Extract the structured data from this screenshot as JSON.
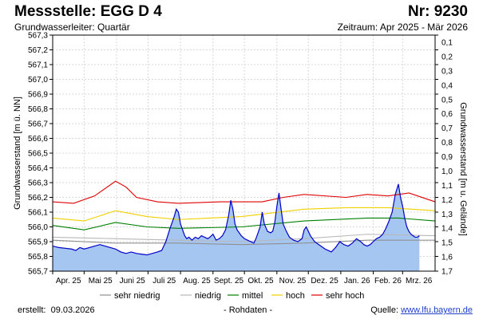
{
  "header": {
    "title": "Messstelle: EGG D 4",
    "number": "Nr: 9230",
    "subtitle": "Grundwasserleiter: Quartär",
    "period": "Zeitraum: Apr 2025 - Mär 2026"
  },
  "footer": {
    "created_label": "erstellt:",
    "created_date": "09.03.2026",
    "rawdata": "- Rohdaten -",
    "source_label": "Quelle:",
    "source_link": "www.lfu.bayern.de"
  },
  "colors": {
    "data_fill": "#a5c6f0",
    "data_line": "#0000c8",
    "sehr_niedrig": "#909090",
    "niedrig": "#b8b8b8",
    "mittel": "#008000",
    "hoch": "#f0d000",
    "sehr_hoch": "#e00000",
    "grid": "#d8d8d8"
  },
  "chart_data": {
    "type": "area",
    "title": "Messstelle: EGG D 4",
    "ylabel_left": "Grundwasserstand [m ü. NN]",
    "ylabel_right": "Grundwasserstand [m u. Gelände]",
    "ylim_left": [
      565.7,
      567.3
    ],
    "ylim_right": [
      0.0,
      1.7
    ],
    "yticks_left": [
      "567,3",
      "567,2",
      "567,1",
      "567,0",
      "566,9",
      "566,8",
      "566,7",
      "566,6",
      "566,5",
      "566,4",
      "566,3",
      "566,2",
      "566,1",
      "566,0",
      "565,9",
      "565,8",
      "565,7"
    ],
    "yticks_right": [
      "0,1",
      "0,2",
      "0,3",
      "0,4",
      "0,5",
      "0,6",
      "0,7",
      "0,8",
      "0,9",
      "1,0",
      "1,1",
      "1,2",
      "1,3",
      "1,4",
      "1,5",
      "1,6",
      "1,7"
    ],
    "xticks": [
      "Apr. 25",
      "Mai 25",
      "Juni 25",
      "Juli 25",
      "Aug. 25",
      "Sept. 25",
      "Okt. 25",
      "Nov. 25",
      "Dez. 25",
      "Jan. 26",
      "Feb. 26",
      "Mrz. 26"
    ],
    "xlim_days": [
      0,
      365
    ],
    "series": [
      {
        "name": "Rohdaten",
        "x_days": [
          0,
          6,
          12,
          18,
          22,
          26,
          30,
          35,
          40,
          45,
          50,
          55,
          60,
          65,
          70,
          75,
          80,
          85,
          90,
          95,
          100,
          104,
          108,
          112,
          116,
          118,
          120,
          122,
          124,
          126,
          128,
          130,
          133,
          136,
          139,
          142,
          145,
          148,
          150,
          153,
          156,
          159,
          162,
          165,
          168,
          170,
          172,
          174,
          176,
          178,
          180,
          183,
          186,
          189,
          192,
          194,
          196,
          198,
          200,
          202,
          205,
          208,
          210,
          212,
          214,
          216,
          218,
          220,
          223,
          226,
          230,
          234,
          238,
          240,
          242,
          244,
          246,
          248,
          250,
          252,
          254,
          256,
          258,
          260,
          263,
          266,
          270,
          274,
          278,
          282,
          286,
          290,
          294,
          297,
          300,
          303,
          306,
          309,
          312,
          315,
          318,
          321,
          324,
          327,
          330,
          332,
          334,
          336,
          338,
          340,
          342,
          344,
          346,
          348,
          350
        ],
        "values": [
          565.87,
          565.86,
          565.855,
          565.85,
          565.84,
          565.86,
          565.85,
          565.86,
          565.87,
          565.88,
          565.87,
          565.86,
          565.85,
          565.83,
          565.82,
          565.83,
          565.82,
          565.815,
          565.81,
          565.82,
          565.83,
          565.84,
          565.9,
          565.99,
          566.07,
          566.12,
          566.1,
          566.02,
          565.98,
          565.94,
          565.92,
          565.93,
          565.91,
          565.93,
          565.92,
          565.94,
          565.93,
          565.92,
          565.93,
          565.95,
          565.91,
          565.92,
          565.94,
          565.98,
          566.08,
          566.18,
          566.12,
          566.02,
          565.98,
          565.96,
          565.94,
          565.92,
          565.91,
          565.9,
          565.89,
          565.92,
          565.96,
          566.0,
          566.1,
          566.02,
          565.97,
          565.96,
          565.97,
          566.03,
          566.14,
          566.23,
          566.12,
          566.02,
          565.97,
          565.93,
          565.91,
          565.9,
          565.92,
          565.98,
          566.0,
          565.97,
          565.94,
          565.92,
          565.9,
          565.89,
          565.88,
          565.87,
          565.86,
          565.85,
          565.84,
          565.83,
          565.86,
          565.9,
          565.88,
          565.87,
          565.89,
          565.92,
          565.9,
          565.88,
          565.87,
          565.88,
          565.9,
          565.92,
          565.93,
          565.95,
          565.99,
          566.04,
          566.1,
          566.22,
          566.29,
          566.2,
          566.14,
          566.06,
          566.0,
          565.97,
          565.95,
          565.94,
          565.93,
          565.93,
          565.94
        ],
        "color": "#0000c8"
      },
      {
        "name": "sehr niedrig",
        "x_days": [
          0,
          60,
          120,
          180,
          240,
          300,
          365
        ],
        "values": [
          565.91,
          565.89,
          565.89,
          565.88,
          565.89,
          565.91,
          565.91
        ]
      },
      {
        "name": "niedrig",
        "x_days": [
          0,
          60,
          120,
          180,
          240,
          300,
          365
        ],
        "values": [
          565.93,
          565.92,
          565.91,
          565.9,
          565.92,
          565.95,
          565.94
        ]
      },
      {
        "name": "mittel",
        "x_days": [
          0,
          30,
          60,
          90,
          120,
          180,
          240,
          300,
          330,
          365
        ],
        "values": [
          566.01,
          565.98,
          566.03,
          566.0,
          565.99,
          566.0,
          566.04,
          566.06,
          566.06,
          566.04
        ]
      },
      {
        "name": "hoch",
        "x_days": [
          0,
          30,
          60,
          90,
          120,
          180,
          240,
          280,
          320,
          365
        ],
        "values": [
          566.06,
          566.04,
          566.11,
          566.07,
          566.05,
          566.07,
          566.12,
          566.13,
          566.13,
          566.11
        ]
      },
      {
        "name": "sehr hoch",
        "x_days": [
          0,
          20,
          40,
          60,
          70,
          80,
          100,
          120,
          160,
          200,
          220,
          240,
          280,
          300,
          320,
          340,
          365
        ],
        "values": [
          566.17,
          566.16,
          566.21,
          566.31,
          566.27,
          566.2,
          566.17,
          566.16,
          566.17,
          566.17,
          566.2,
          566.22,
          566.2,
          566.22,
          566.21,
          566.23,
          566.17
        ]
      }
    ],
    "legend": [
      "sehr niedrig",
      "niedrig",
      "mittel",
      "hoch",
      "sehr hoch"
    ],
    "legend_placement": "bottom",
    "grid": true
  }
}
